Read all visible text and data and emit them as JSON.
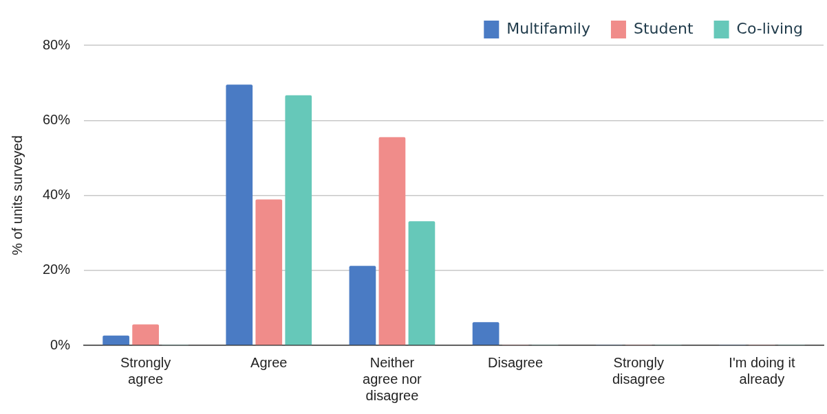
{
  "chart_data": {
    "type": "bar",
    "ylabel": "% of units surveyed",
    "categories": [
      "Strongly agree",
      "Agree",
      "Neither agree nor disagree",
      "Disagree",
      "Strongly disagree",
      "I'm doing it already"
    ],
    "series": [
      {
        "name": "Multifamily",
        "color": "#4a7bc4",
        "values": [
          2.6,
          69.5,
          21.2,
          6.2,
          0,
          0
        ]
      },
      {
        "name": "Student",
        "color": "#f08c8a",
        "values": [
          5.6,
          38.9,
          55.5,
          0,
          0,
          0
        ]
      },
      {
        "name": "Co-living",
        "color": "#66c8b9",
        "values": [
          0,
          66.7,
          33.1,
          0,
          0,
          0
        ]
      }
    ],
    "ylim": [
      0,
      80
    ],
    "yticks": [
      {
        "value": 0,
        "label": "0%"
      },
      {
        "value": 20,
        "label": "20%"
      },
      {
        "value": 40,
        "label": "40%"
      },
      {
        "value": 60,
        "label": "60%"
      },
      {
        "value": 80,
        "label": "80%"
      }
    ],
    "grid": "y",
    "legend": "top right"
  }
}
